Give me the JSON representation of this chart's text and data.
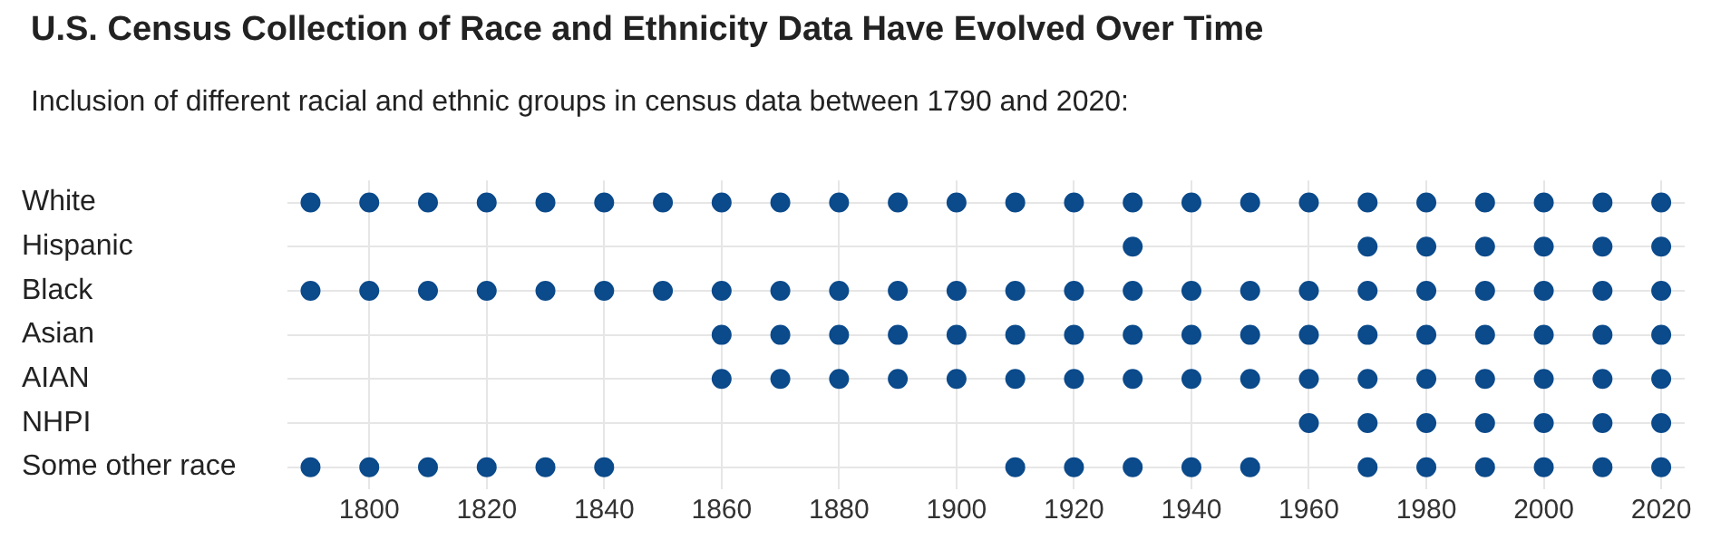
{
  "chart_data": {
    "type": "scatter",
    "title": "U.S. Census Collection of Race and Ethnicity Data Have Evolved Over Time",
    "subtitle": "Inclusion of different racial and ethnic groups in census data between 1790 and 2020:",
    "orientation": "horizontal",
    "categories": [
      "White",
      "Hispanic",
      "Black",
      "Asian",
      "AIAN",
      "NHPI",
      "Some other race"
    ],
    "series": [
      {
        "color": "#0b4a8b",
        "values": [
          1790,
          null,
          1790,
          null,
          null,
          null,
          1790
        ]
      },
      {
        "color": "#0b4a8b",
        "values": [
          1800,
          null,
          1800,
          null,
          null,
          null,
          1800
        ]
      },
      {
        "color": "#0b4a8b",
        "values": [
          1810,
          null,
          1810,
          null,
          null,
          null,
          1810
        ]
      },
      {
        "color": "#0b4a8b",
        "values": [
          1820,
          null,
          1820,
          null,
          null,
          null,
          1820
        ]
      },
      {
        "color": "#0b4a8b",
        "values": [
          1830,
          null,
          1830,
          null,
          null,
          null,
          1830
        ]
      },
      {
        "color": "#0b4a8b",
        "values": [
          1840,
          null,
          1840,
          null,
          null,
          null,
          1840
        ]
      },
      {
        "color": "#0b4a8b",
        "values": [
          1850,
          null,
          1850,
          null,
          null,
          null,
          null
        ]
      },
      {
        "color": "#0b4a8b",
        "values": [
          1860,
          null,
          1860,
          1860,
          1860,
          null,
          null
        ]
      },
      {
        "color": "#0b4a8b",
        "values": [
          1870,
          null,
          1870,
          1870,
          1870,
          null,
          null
        ]
      },
      {
        "color": "#0b4a8b",
        "values": [
          1880,
          null,
          1880,
          1880,
          1880,
          null,
          null
        ]
      },
      {
        "color": "#0b4a8b",
        "values": [
          1890,
          null,
          1890,
          1890,
          1890,
          null,
          null
        ]
      },
      {
        "color": "#0b4a8b",
        "values": [
          1900,
          null,
          1900,
          1900,
          1900,
          null,
          null
        ]
      },
      {
        "color": "#0b4a8b",
        "values": [
          1910,
          null,
          1910,
          1910,
          1910,
          null,
          1910
        ]
      },
      {
        "color": "#0b4a8b",
        "values": [
          1920,
          null,
          1920,
          1920,
          1920,
          null,
          1920
        ]
      },
      {
        "color": "#0b4a8b",
        "values": [
          1930,
          1930,
          1930,
          1930,
          1930,
          null,
          1930
        ]
      },
      {
        "color": "#0b4a8b",
        "values": [
          1940,
          null,
          1940,
          1940,
          1940,
          null,
          1940
        ]
      },
      {
        "color": "#0b4a8b",
        "values": [
          1950,
          null,
          1950,
          1950,
          1950,
          null,
          1950
        ]
      },
      {
        "color": "#0b4a8b",
        "values": [
          1960,
          null,
          1960,
          1960,
          1960,
          1960,
          null
        ]
      },
      {
        "color": "#0b4a8b",
        "values": [
          1970,
          1970,
          1970,
          1970,
          1970,
          1970,
          1970
        ]
      },
      {
        "color": "#0b4a8b",
        "values": [
          1980,
          1980,
          1980,
          1980,
          1980,
          1980,
          1980
        ]
      },
      {
        "color": "#0b4a8b",
        "values": [
          1990,
          1990,
          1990,
          1990,
          1990,
          1990,
          1990
        ]
      },
      {
        "color": "#0b4a8b",
        "values": [
          2000,
          2000,
          2000,
          2000,
          2000,
          2000,
          2000
        ]
      },
      {
        "color": "#0b4a8b",
        "values": [
          2010,
          2010,
          2010,
          2010,
          2010,
          2010,
          2010
        ]
      },
      {
        "color": "#0b4a8b",
        "values": [
          2020,
          2020,
          2020,
          2020,
          2020,
          2020,
          2020
        ]
      }
    ],
    "xlim": [
      1786,
      2024
    ],
    "xticks": [
      1800,
      1820,
      1840,
      1860,
      1880,
      1900,
      1920,
      1940,
      1960,
      1980,
      2000,
      2020
    ],
    "grid": true,
    "marker": "circle"
  }
}
